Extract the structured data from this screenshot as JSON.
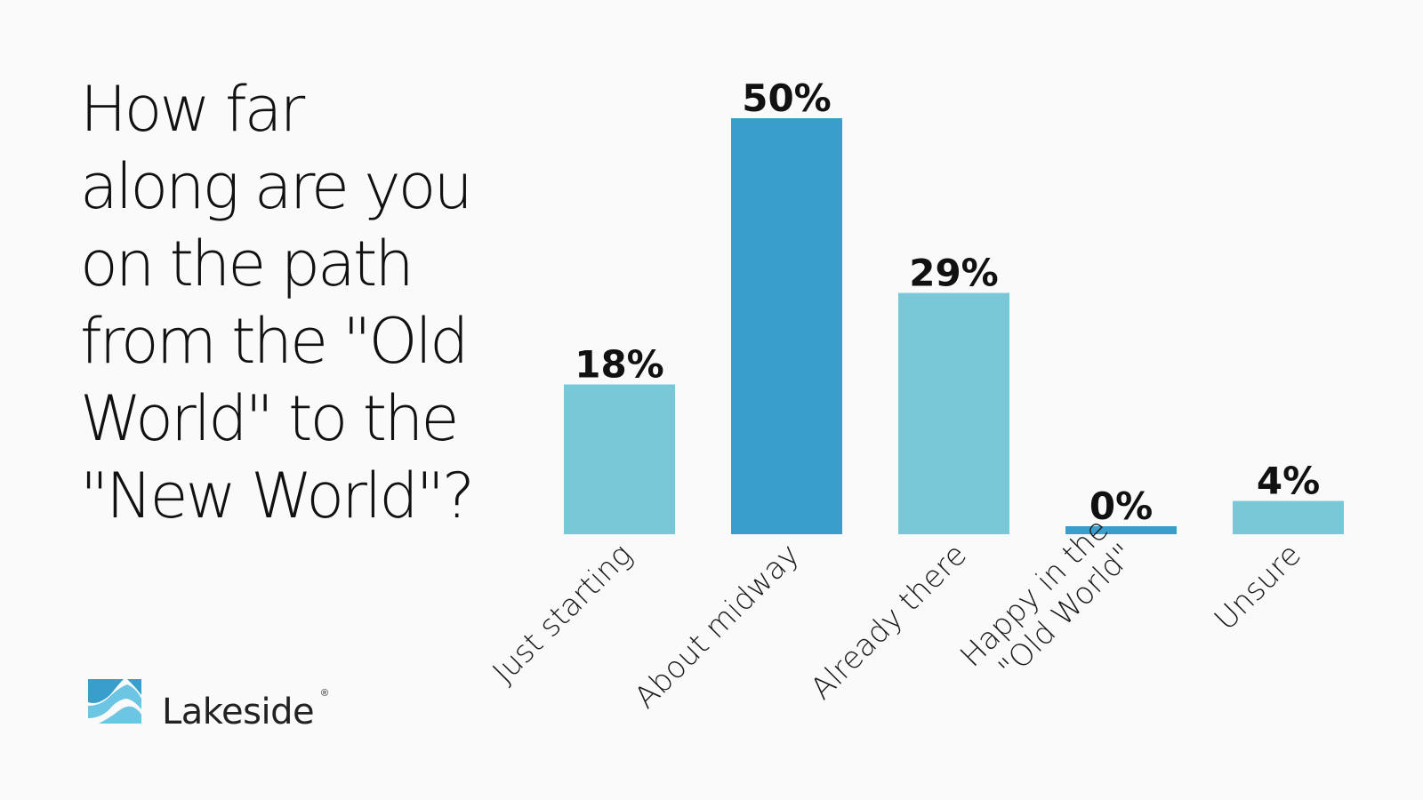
{
  "title_lines": [
    "How far",
    "along are you",
    "on the path",
    "from the \"Old",
    "World\" to the",
    "\"New World\"?"
  ],
  "brand": {
    "name": "Lakeside",
    "registered_mark": "®"
  },
  "colors": {
    "light_bar": "#79c8d7",
    "dark_bar": "#3a9ecd",
    "label": "#111111"
  },
  "chart_data": {
    "type": "bar",
    "title": "How far along are you on the path from the \"Old World\" to the \"New World\"?",
    "categories": [
      "Just starting",
      "About midway",
      "Already there",
      "Happy in the \"Old World\"",
      "Unsure"
    ],
    "category_label_lines": [
      [
        "Just starting"
      ],
      [
        "About midway"
      ],
      [
        "Already there"
      ],
      [
        "Happy in the",
        "\"Old World\""
      ],
      [
        "Unsure"
      ]
    ],
    "values": [
      18,
      50,
      29,
      0,
      4
    ],
    "value_labels": [
      "18%",
      "50%",
      "29%",
      "0%",
      "4%"
    ],
    "bar_colors": [
      "#79c8d7",
      "#3a9ecd",
      "#79c8d7",
      "#3a9ecd",
      "#79c8d7"
    ],
    "unit": "%",
    "ylim": [
      0,
      50
    ],
    "grid": false,
    "legend": "none"
  }
}
